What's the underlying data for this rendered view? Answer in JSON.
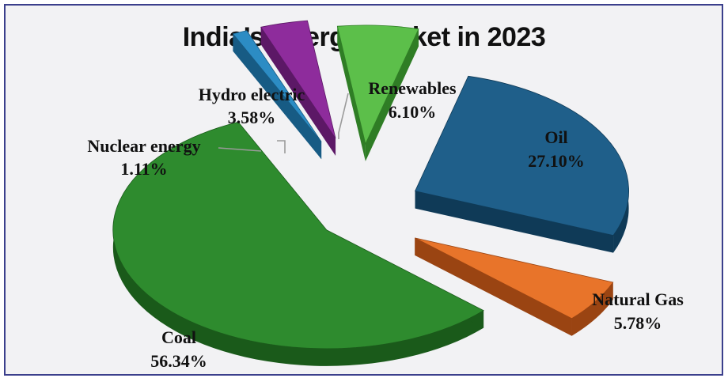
{
  "chart_data": {
    "type": "pie",
    "title": "India’s Energy basket in 2023",
    "slices": [
      {
        "label": "Oil",
        "value_text": "27.10%",
        "value": 27.1,
        "color": "#1f5f8a",
        "side": "#0f3a57"
      },
      {
        "label": "Natural Gas",
        "value_text": "5.78%",
        "value": 5.78,
        "color": "#e8742a",
        "side": "#9a4412"
      },
      {
        "label": "Coal",
        "value_text": "56.34%",
        "value": 56.34,
        "color": "#2e8b2e",
        "side": "#1a5a1a"
      },
      {
        "label": "Nuclear energy",
        "value_text": "1.11%",
        "value": 1.11,
        "color": "#2c8cc4",
        "side": "#175b84"
      },
      {
        "label": "Hydro electric",
        "value_text": "3.58%",
        "value": 3.58,
        "color": "#8e2c9c",
        "side": "#5c1866"
      },
      {
        "label": "Renewables",
        "value_text": "6.10%",
        "value": 6.1,
        "color": "#5cbf4a",
        "side": "#2f7d25"
      }
    ],
    "legend": "none",
    "style": "exploded-3d"
  }
}
